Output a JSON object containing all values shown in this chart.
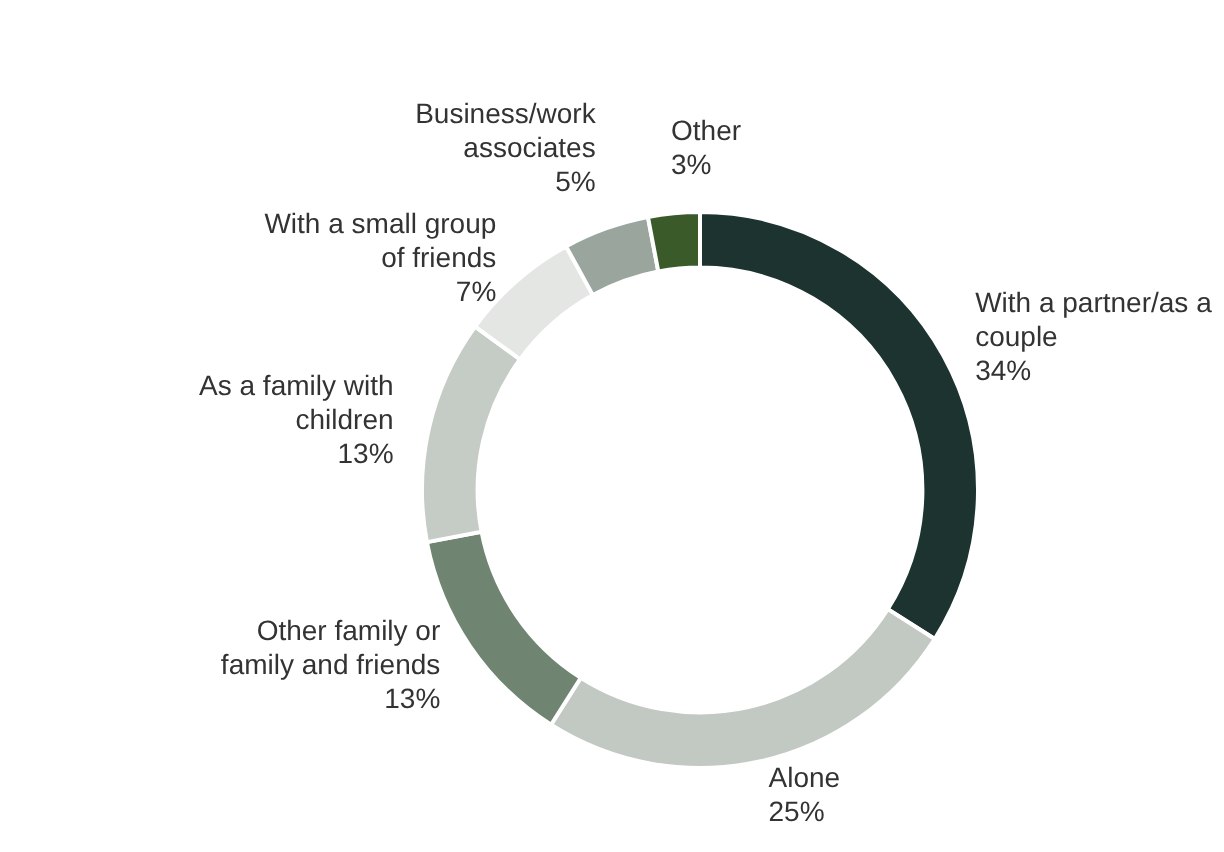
{
  "chart_data": {
    "type": "donut",
    "categories": [
      "With a partner/as a couple",
      "Alone",
      "Other family or family and friends",
      "As a family with children",
      "With a small group of friends",
      "Business/work associates",
      "Other"
    ],
    "values": [
      34,
      25,
      13,
      13,
      7,
      5,
      3
    ],
    "value_labels": [
      "34%",
      "25%",
      "13%",
      "13%",
      "7%",
      "5%",
      "3%"
    ],
    "colors": [
      "#1c3330",
      "#c2c8c2",
      "#6f8572",
      "#c5cbc5",
      "#e3e6e3",
      "#9aa59e",
      "#3a5a2a"
    ],
    "legend": false
  }
}
